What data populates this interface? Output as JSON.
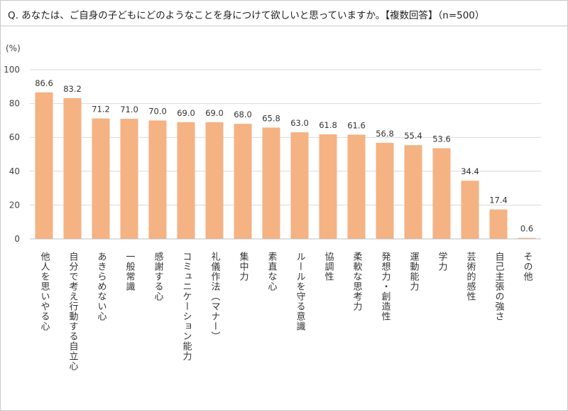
{
  "question": "Q. あなたは、ご自身の子どもにどのようなことを身につけて欲しいと思っていますか。【複数回答】（n=500）",
  "chart_data": {
    "type": "bar",
    "y_unit": "(%)",
    "ylim": [
      0,
      100
    ],
    "yticks": [
      0,
      20,
      40,
      60,
      80,
      100
    ],
    "grid": true,
    "bar_color": "#f5b283",
    "categories": [
      "他人を思いやる心",
      "自分で考え行動する自立心",
      "あきらめない心",
      "一般常識",
      "感謝する心",
      "コミュニケーション能力",
      "礼儀作法（マナー）",
      "集中力",
      "素直な心",
      "ルールを守る意識",
      "協調性",
      "柔軟な思考力",
      "発想力・創造性",
      "運動能力",
      "学力",
      "芸術的感性",
      "自己主張の強さ",
      "その他"
    ],
    "values": [
      86.6,
      83.2,
      71.2,
      71.0,
      70.0,
      69.0,
      69.0,
      68.0,
      65.8,
      63.0,
      61.8,
      61.6,
      56.8,
      55.4,
      53.6,
      34.4,
      17.4,
      0.6
    ],
    "value_labels": [
      "86.6",
      "83.2",
      "71.2",
      "71.0",
      "70.0",
      "69.0",
      "69.0",
      "68.0",
      "65.8",
      "63.0",
      "61.8",
      "61.6",
      "56.8",
      "55.4",
      "53.6",
      "34.4",
      "17.4",
      "0.6"
    ]
  }
}
